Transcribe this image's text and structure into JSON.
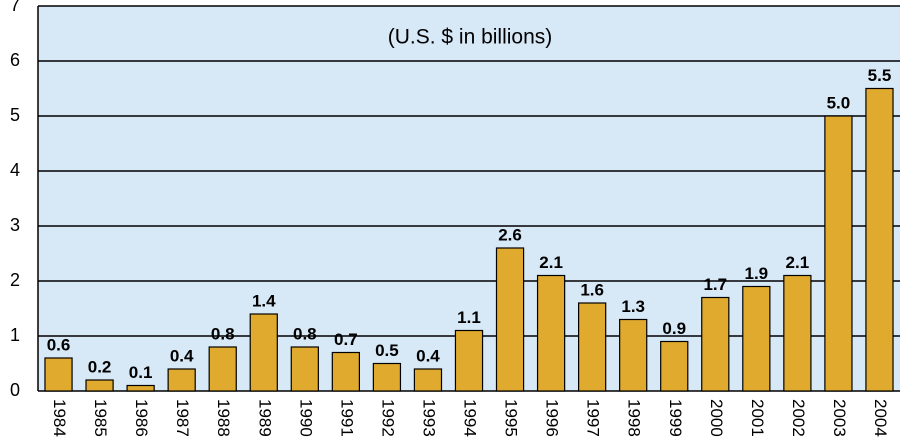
{
  "chart_data": {
    "type": "bar",
    "subtitle": "(U.S. $ in billions)",
    "categories": [
      "1984",
      "1985",
      "1986",
      "1987",
      "1988",
      "1989",
      "1990",
      "1991",
      "1992",
      "1993",
      "1994",
      "1995",
      "1996",
      "1997",
      "1998",
      "1999",
      "2000",
      "2001",
      "2002",
      "2003",
      "2004"
    ],
    "values": [
      0.6,
      0.2,
      0.1,
      0.4,
      0.8,
      1.4,
      0.8,
      0.7,
      0.5,
      0.4,
      1.1,
      2.6,
      2.1,
      1.6,
      1.3,
      0.9,
      1.7,
      1.9,
      2.1,
      5,
      5.5
    ],
    "value_labels": [
      "0.6",
      "0.2",
      "0.1",
      "0.4",
      "0.8",
      "1.4",
      "0.8",
      "0.7",
      "0.5",
      "0.4",
      "1.1",
      "2.6",
      "2.1",
      "1.6",
      "1.3",
      "0.9",
      "1.7",
      "1.9",
      "2.1",
      "5.0",
      "5.5"
    ],
    "color": "#e0aa2e",
    "ylim": [
      0,
      7
    ],
    "yticks": [
      0,
      1,
      2,
      3,
      4,
      5,
      6,
      7
    ],
    "grid": true
  }
}
